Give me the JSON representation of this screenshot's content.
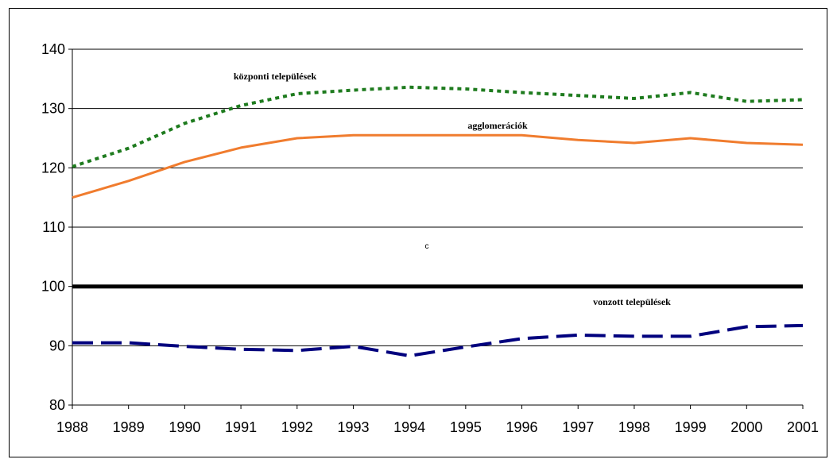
{
  "chart_data": {
    "type": "line",
    "title": "",
    "xlabel": "",
    "ylabel": "",
    "x": [
      "1988",
      "1989",
      "1990",
      "1991",
      "1992",
      "1993",
      "1994",
      "1995",
      "1996",
      "1997",
      "1998",
      "1999",
      "2000",
      "2001"
    ],
    "ylim": [
      80,
      140
    ],
    "yticks": [
      80,
      90,
      100,
      110,
      120,
      130,
      140
    ],
    "grid": true,
    "legend": "none",
    "annotation": "c",
    "series": [
      {
        "name": "központi települések",
        "style": "dotted",
        "color": "#1e7b1e",
        "values": [
          120.2,
          123.3,
          127.5,
          130.5,
          132.5,
          133.1,
          133.6,
          133.3,
          132.7,
          132.2,
          131.7,
          132.7,
          131.2,
          131.5
        ]
      },
      {
        "name": "agglomerációk",
        "style": "solid",
        "color": "#f07c2e",
        "values": [
          115.0,
          117.8,
          121.0,
          123.4,
          125.0,
          125.5,
          125.5,
          125.5,
          125.5,
          124.7,
          124.2,
          125.0,
          124.2,
          123.9
        ]
      },
      {
        "name": "",
        "style": "solid-bold",
        "color": "#000000",
        "values": [
          100,
          100,
          100,
          100,
          100,
          100,
          100,
          100,
          100,
          100,
          100,
          100,
          100,
          100
        ]
      },
      {
        "name": "vonzott települések",
        "style": "dashed",
        "color": "#00007e",
        "values": [
          90.5,
          90.5,
          89.9,
          89.4,
          89.2,
          89.9,
          88.3,
          89.8,
          91.2,
          91.8,
          91.6,
          91.6,
          93.2,
          93.4
        ]
      }
    ]
  }
}
